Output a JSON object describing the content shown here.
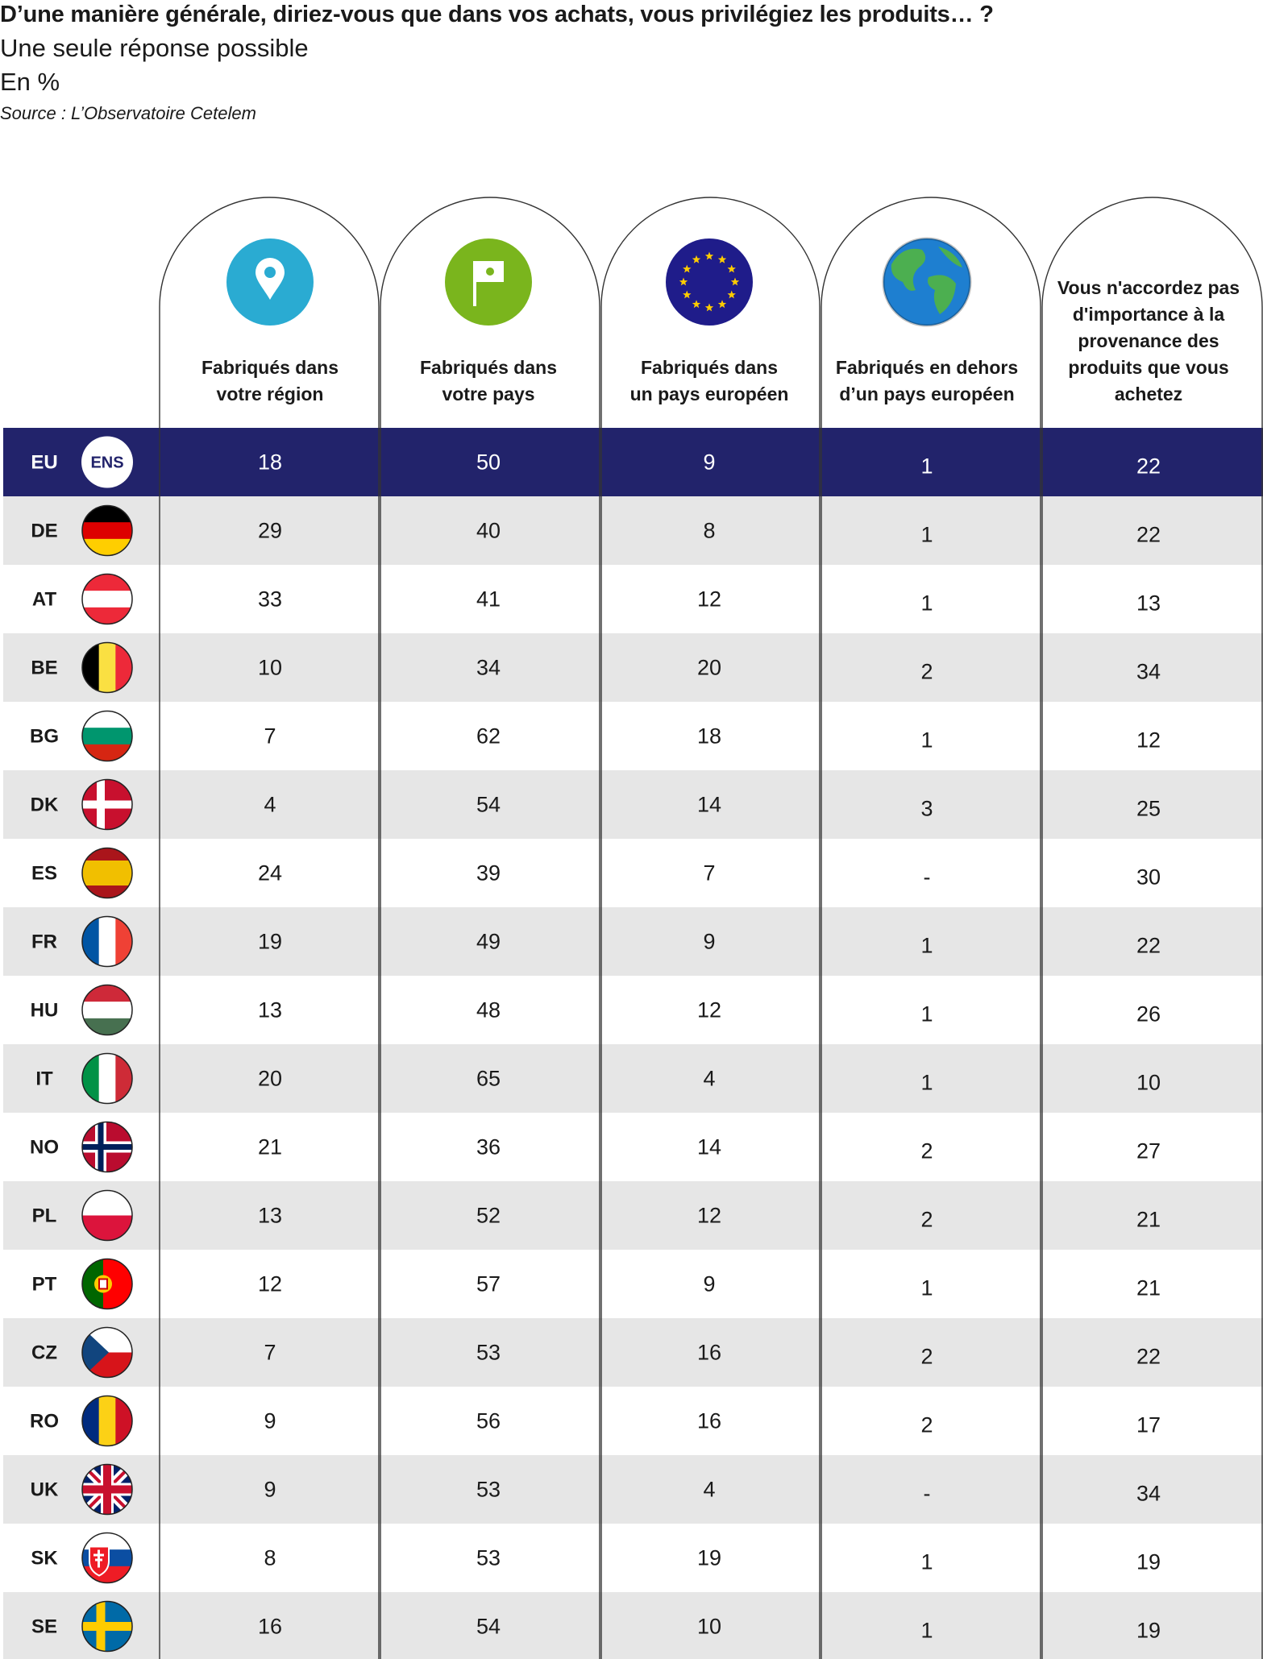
{
  "header": {
    "title": "D’une manière générale, diriez-vous que dans vos achats, vous privilégiez les produits… ?",
    "subtitle": "Une seule réponse possible",
    "unit": "En %",
    "source": "Source : L’Observatoire Cetelem"
  },
  "colors": {
    "highlight_row": "#22236b",
    "stripe": "#e6e6e6",
    "region_icon": "#2aabd2",
    "country_icon": "#7ab51d",
    "europe_icon": "#1f1c8a",
    "globe_ocean": "#1e7fd0",
    "globe_land": "#4caf50"
  },
  "chart_data": {
    "type": "table",
    "columns": [
      {
        "icon": "map-pin-icon",
        "label_lines": [
          "Fabriqués dans",
          "votre région"
        ]
      },
      {
        "icon": "flag-icon",
        "label_lines": [
          "Fabriqués dans",
          "votre pays"
        ]
      },
      {
        "icon": "eu-stars-icon",
        "label_lines": [
          "Fabriqués dans",
          "un pays européen"
        ]
      },
      {
        "icon": "globe-icon",
        "label_lines": [
          "Fabriqués en dehors",
          "d’un pays européen"
        ]
      },
      {
        "icon": "",
        "label_lines": [
          "Vous n'accordez pas",
          "d'importance à la",
          "provenance des",
          "produits que vous",
          "achetez"
        ]
      }
    ],
    "rows": [
      {
        "code": "EU",
        "badge": "ENS",
        "values": [
          "18",
          "50",
          "9",
          "1",
          "22"
        ]
      },
      {
        "code": "DE",
        "values": [
          "29",
          "40",
          "8",
          "1",
          "22"
        ]
      },
      {
        "code": "AT",
        "values": [
          "33",
          "41",
          "12",
          "1",
          "13"
        ]
      },
      {
        "code": "BE",
        "values": [
          "10",
          "34",
          "20",
          "2",
          "34"
        ]
      },
      {
        "code": "BG",
        "values": [
          "7",
          "62",
          "18",
          "1",
          "12"
        ]
      },
      {
        "code": "DK",
        "values": [
          "4",
          "54",
          "14",
          "3",
          "25"
        ]
      },
      {
        "code": "ES",
        "values": [
          "24",
          "39",
          "7",
          "-",
          "30"
        ]
      },
      {
        "code": "FR",
        "values": [
          "19",
          "49",
          "9",
          "1",
          "22"
        ]
      },
      {
        "code": "HU",
        "values": [
          "13",
          "48",
          "12",
          "1",
          "26"
        ]
      },
      {
        "code": "IT",
        "values": [
          "20",
          "65",
          "4",
          "1",
          "10"
        ]
      },
      {
        "code": "NO",
        "values": [
          "21",
          "36",
          "14",
          "2",
          "27"
        ]
      },
      {
        "code": "PL",
        "values": [
          "13",
          "52",
          "12",
          "2",
          "21"
        ]
      },
      {
        "code": "PT",
        "values": [
          "12",
          "57",
          "9",
          "1",
          "21"
        ]
      },
      {
        "code": "CZ",
        "values": [
          "7",
          "53",
          "16",
          "2",
          "22"
        ]
      },
      {
        "code": "RO",
        "values": [
          "9",
          "56",
          "16",
          "2",
          "17"
        ]
      },
      {
        "code": "UK",
        "values": [
          "9",
          "53",
          "4",
          "-",
          "34"
        ]
      },
      {
        "code": "SK",
        "values": [
          "8",
          "53",
          "19",
          "1",
          "19"
        ]
      },
      {
        "code": "SE",
        "values": [
          "16",
          "54",
          "10",
          "1",
          "19"
        ]
      }
    ]
  }
}
